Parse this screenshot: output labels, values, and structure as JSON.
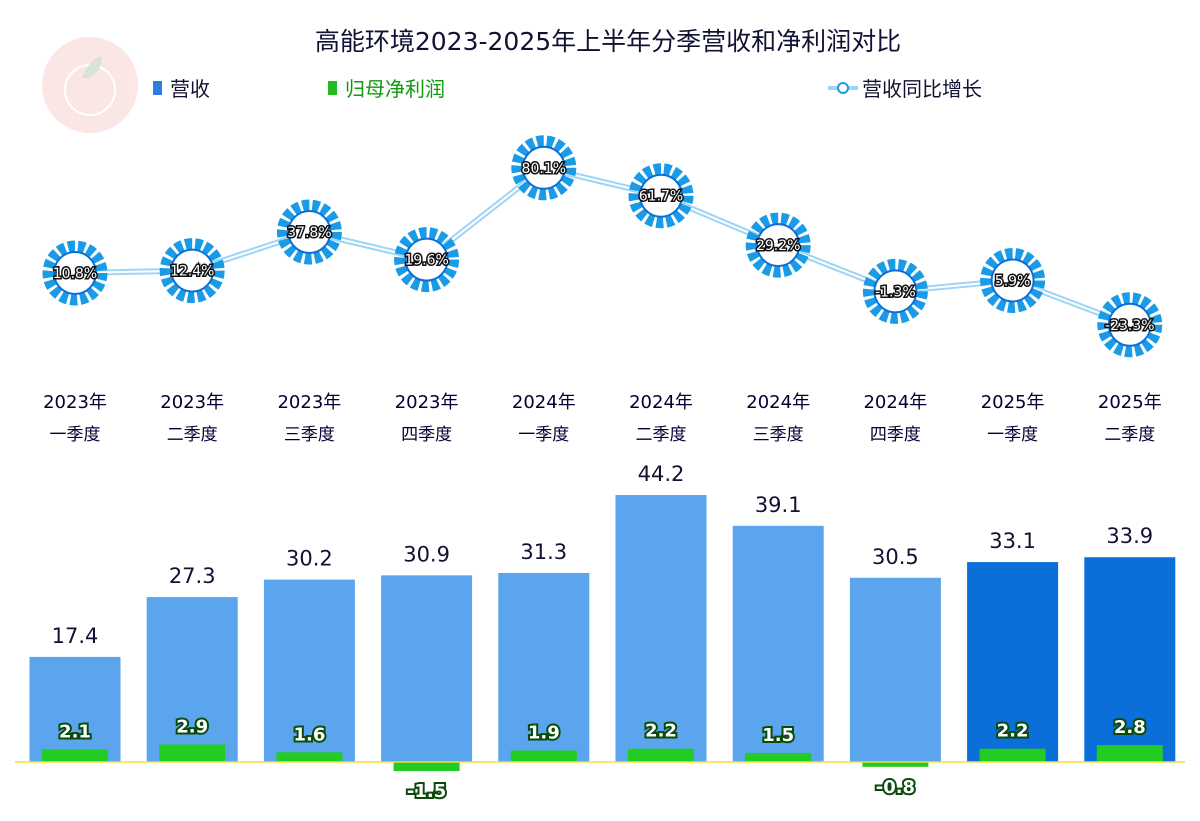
{
  "chart_data": {
    "type": "bar",
    "title": "高能环境2023-2025年上半年分季营收和净利润对比",
    "categories": [
      [
        "2023年",
        "一季度"
      ],
      [
        "2023年",
        "二季度"
      ],
      [
        "2023年",
        "三季度"
      ],
      [
        "2023年",
        "四季度"
      ],
      [
        "2024年",
        "一季度"
      ],
      [
        "2024年",
        "二季度"
      ],
      [
        "2024年",
        "三季度"
      ],
      [
        "2024年",
        "四季度"
      ],
      [
        "2025年",
        "一季度"
      ],
      [
        "2025年",
        "二季度"
      ]
    ],
    "series": [
      {
        "name": "营收",
        "type": "bar",
        "values": [
          17.4,
          27.3,
          30.2,
          30.9,
          31.3,
          44.2,
          39.1,
          30.5,
          33.1,
          33.9
        ],
        "color": "#5aa5ee",
        "highlight_color": "#0a6fd8"
      },
      {
        "name": "归母净利润",
        "type": "bar",
        "values": [
          2.1,
          2.9,
          1.6,
          -1.5,
          1.9,
          2.2,
          1.5,
          -0.8,
          2.2,
          2.8
        ],
        "color": "#22cc22"
      },
      {
        "name": "营收同比增长",
        "type": "line",
        "unit": "%",
        "values": [
          10.8,
          12.4,
          37.8,
          19.6,
          80.1,
          61.7,
          29.2,
          -1.3,
          5.9,
          -23.3
        ],
        "color": "#1a9be8"
      }
    ],
    "legend_placement": "top",
    "grid": false
  }
}
